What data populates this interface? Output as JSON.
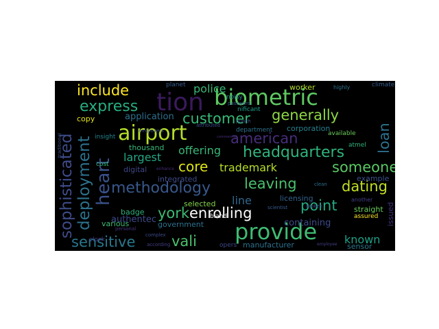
{
  "words": [
    {
      "text": "airport",
      "color": "#b5de2b"
    },
    {
      "text": "biometric",
      "color": "#5ec962"
    },
    {
      "text": "provide",
      "color": "#3fbc73"
    },
    {
      "text": "tion",
      "color": "#3b1a5e"
    },
    {
      "text": "sophisticated",
      "color": "#3e4c8a"
    },
    {
      "text": "deployment",
      "color": "#2c728e"
    },
    {
      "text": "heart",
      "color": "#3b528b"
    },
    {
      "text": "headquarters",
      "color": "#2fb47c"
    },
    {
      "text": "methodology",
      "color": "#38588c"
    },
    {
      "text": "express",
      "color": "#27ad81"
    },
    {
      "text": "customer",
      "color": "#38b977"
    },
    {
      "text": "american",
      "color": "#472d7b"
    },
    {
      "text": "generally",
      "color": "#8fd744"
    },
    {
      "text": "dating",
      "color": "#c2df23"
    },
    {
      "text": "york",
      "color": "#3dbc74"
    },
    {
      "text": "enrolling",
      "color": "#ffffff"
    },
    {
      "text": "sensitive",
      "color": "#2a788e"
    },
    {
      "text": "someone",
      "color": "#5ac864"
    },
    {
      "text": "leaving",
      "color": "#4ac16d"
    },
    {
      "text": "point",
      "color": "#24aa83"
    },
    {
      "text": "vali",
      "color": "#4cc26c"
    },
    {
      "text": "include",
      "color": "#fde725"
    },
    {
      "text": "loan",
      "color": "#2c728e"
    },
    {
      "text": "core",
      "color": "#dde318"
    },
    {
      "text": "trademark",
      "color": "#b8de29"
    },
    {
      "text": "offering",
      "color": "#37b878"
    },
    {
      "text": "largest",
      "color": "#22a884"
    },
    {
      "text": "known",
      "color": "#1fa088"
    },
    {
      "text": "police",
      "color": "#38b977"
    },
    {
      "text": "line",
      "color": "#31688e"
    },
    {
      "text": "application",
      "color": "#2d708e"
    },
    {
      "text": "authentec",
      "color": "#3e4a89"
    },
    {
      "text": "containing",
      "color": "#3e4c8a"
    },
    {
      "text": "manufacturer",
      "color": "#2c728e"
    },
    {
      "text": "corporation",
      "color": "#26828e"
    },
    {
      "text": "worker",
      "color": "#b5de2b"
    },
    {
      "text": "digital",
      "color": "#3f4788"
    },
    {
      "text": "selected",
      "color": "#85d54a"
    },
    {
      "text": "various",
      "color": "#3dbc74"
    },
    {
      "text": "thousand",
      "color": "#35b779"
    },
    {
      "text": "badge",
      "color": "#2fb47c"
    },
    {
      "text": "copy",
      "color": "#e5e419"
    },
    {
      "text": "integrated",
      "color": "#3e4c8a"
    },
    {
      "text": "government",
      "color": "#2c728e"
    },
    {
      "text": "issued",
      "color": "#46337f"
    },
    {
      "text": "sensor",
      "color": "#2a788e"
    },
    {
      "text": "straight",
      "color": "#6ccd5a"
    },
    {
      "text": "licensing",
      "color": "#33638d"
    },
    {
      "text": "example",
      "color": "#3b528b"
    },
    {
      "text": "assured",
      "color": "#fde725"
    },
    {
      "text": "atmel",
      "color": "#2fb47c"
    },
    {
      "text": "available",
      "color": "#6ccd5a"
    },
    {
      "text": "department",
      "color": "#2c728e"
    },
    {
      "text": "cost",
      "color": "#35b779"
    },
    {
      "text": "insight",
      "color": "#24868e"
    },
    {
      "text": "bland",
      "color": "#ffffff"
    },
    {
      "text": "opers",
      "color": "#3f4788"
    },
    {
      "text": "clock",
      "color": "#433e85"
    },
    {
      "text": "personal",
      "color": "#46337f"
    },
    {
      "text": "complex",
      "color": "#3e4a89"
    },
    {
      "text": "according",
      "color": "#433e85"
    },
    {
      "text": "employers",
      "color": "#3f4788"
    },
    {
      "text": "punch",
      "color": "#3b528b"
    },
    {
      "text": "planet",
      "color": "#365c8d"
    },
    {
      "text": "noisy",
      "color": "#26828e"
    },
    {
      "text": "password",
      "color": "#365c8d"
    },
    {
      "text": "nificant",
      "color": "#1fa088"
    },
    {
      "text": "climate",
      "color": "#365c8d"
    },
    {
      "text": "highly",
      "color": "#2c728e"
    },
    {
      "text": "attributed",
      "color": "#3e4c8a"
    },
    {
      "text": "scientist",
      "color": "#365c8d"
    },
    {
      "text": "clean",
      "color": "#2c728e"
    },
    {
      "text": "broken",
      "color": "#3e4c8a"
    },
    {
      "text": "another",
      "color": "#433e85"
    },
    {
      "text": "employee",
      "color": "#433e85"
    },
    {
      "text": "enhance",
      "color": "#472d7b"
    },
    {
      "text": "commercial",
      "color": "#472d7b"
    },
    {
      "text": "traditional",
      "color": "#3b528b"
    }
  ]
}
